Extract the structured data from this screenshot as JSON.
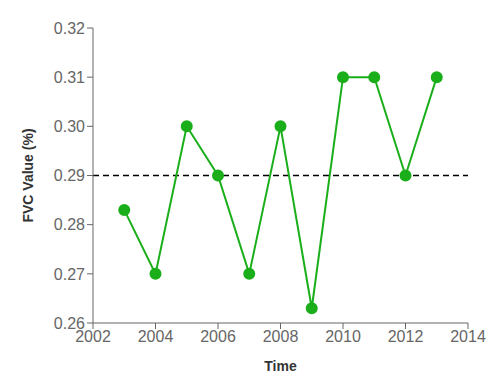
{
  "chart_data": {
    "type": "line",
    "x": [
      2003,
      2004,
      2005,
      2006,
      2007,
      2008,
      2009,
      2010,
      2011,
      2012,
      2013
    ],
    "values": [
      0.283,
      0.27,
      0.3,
      0.29,
      0.27,
      0.3,
      0.263,
      0.31,
      0.31,
      0.29,
      0.31
    ],
    "color": "#1aaf1a",
    "marker": "circle",
    "line_style": "solid",
    "mean_line": {
      "value": 0.29,
      "color": "black",
      "line_style": "dashed"
    },
    "xlabel": "Time",
    "ylabel": "FVC Value (%)",
    "xlim": [
      2002,
      2014
    ],
    "xticks": [
      2002,
      2004,
      2006,
      2008,
      2010,
      2012,
      2014
    ],
    "ylim": [
      0.26,
      0.32
    ],
    "yticks": [
      0.26,
      0.27,
      0.28,
      0.29,
      {
        "value": 0.3,
        "label": "0.30"
      },
      0.31,
      0.32
    ],
    "grid": false
  }
}
